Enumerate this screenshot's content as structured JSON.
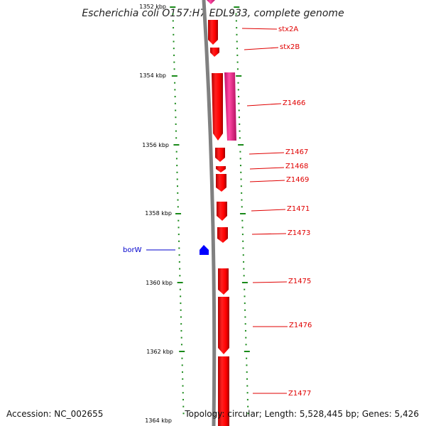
{
  "title": "Escherichia coli O157:H7 EDL933, complete genome",
  "footer": {
    "accession": "Accession: NC_002655",
    "topology": "Topology: circular; Length: 5,528,445 bp; Genes: 5,426"
  },
  "scale_labels": [
    "1352 kbp",
    "1354 kbp",
    "1356 kbp",
    "1358 kbp",
    "1360 kbp",
    "1362 kbp",
    "1364 kbp"
  ],
  "genes": [
    {
      "label": "stx2A",
      "strand": "+",
      "color": "#ff0000"
    },
    {
      "label": "stx2B",
      "strand": "+",
      "color": "#ff0000"
    },
    {
      "label": "Z1466",
      "strand": "+",
      "color": "#ff0000"
    },
    {
      "label": "Z1467",
      "strand": "+",
      "color": "#ff0000"
    },
    {
      "label": "Z1468",
      "strand": "+",
      "color": "#ff0000"
    },
    {
      "label": "Z1469",
      "strand": "+",
      "color": "#ff0000"
    },
    {
      "label": "Z1471",
      "strand": "+",
      "color": "#ff0000"
    },
    {
      "label": "Z1473",
      "strand": "+",
      "color": "#ff0000"
    },
    {
      "label": "borW",
      "strand": "-",
      "color": "#0000ff"
    },
    {
      "label": "Z1475",
      "strand": "+",
      "color": "#ff0000"
    },
    {
      "label": "Z1476",
      "strand": "+",
      "color": "#ff0000"
    },
    {
      "label": "Z1477",
      "strand": "+",
      "color": "#ff0000"
    }
  ],
  "colors": {
    "backbone": "#808080",
    "tick": "#1a8a1a",
    "forward_gene": "#ff0000",
    "reverse_gene": "#0000ff",
    "highlight_gene": "#ff3399"
  }
}
